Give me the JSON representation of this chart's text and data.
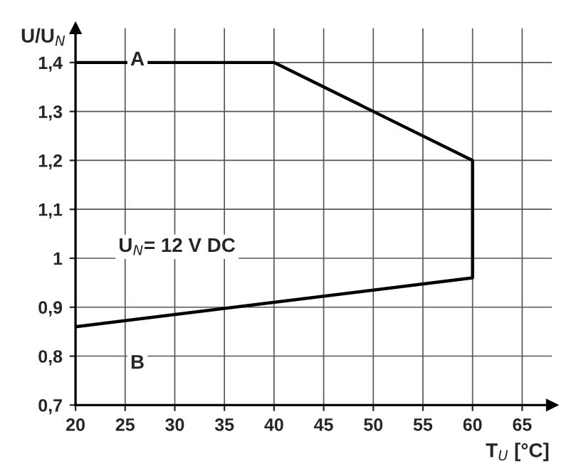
{
  "chart_data": {
    "type": "line",
    "xlabel": "T$_{U}$ [°C]",
    "ylabel": "U/U$_{N}$",
    "x": [
      20,
      40,
      60,
      60,
      20
    ],
    "series": [
      {
        "color": "#000000",
        "values": [
          1.4,
          1.4,
          1.2,
          0.96,
          0.86
        ]
      }
    ],
    "xlim": [
      20,
      68
    ],
    "ylim": [
      0.7,
      1.47
    ],
    "xticks": [
      20,
      25,
      30,
      35,
      40,
      45,
      50,
      55,
      60,
      65
    ],
    "yticks": [
      {
        "value": 0.7,
        "label": "0,7"
      },
      {
        "value": 0.8,
        "label": "0,8"
      },
      {
        "value": 0.9,
        "label": "0,9"
      },
      {
        "value": 1,
        "label": "1"
      },
      {
        "value": 1.1,
        "label": "1,1"
      },
      {
        "value": 1.2,
        "label": "1,2"
      },
      {
        "value": 1.3,
        "label": "1,3"
      },
      {
        "value": 1.4,
        "label": "1,4"
      }
    ],
    "grid": true,
    "marker": "none",
    "line_style": "solid",
    "annotations": [
      "A",
      "B",
      "U$_{N}$= 12 V DC"
    ]
  }
}
